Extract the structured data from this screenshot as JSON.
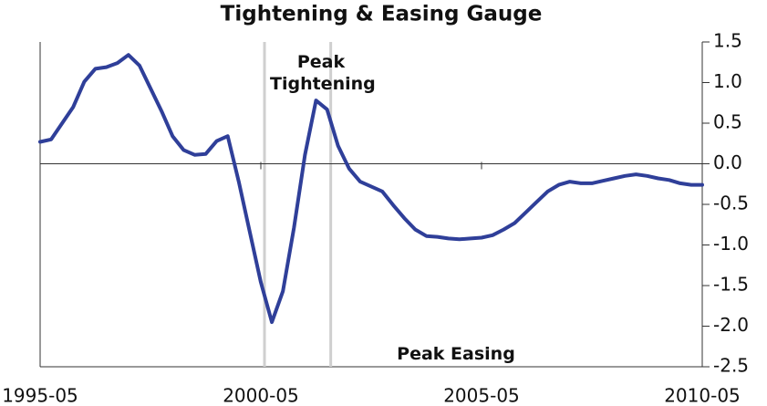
{
  "chart_data": {
    "type": "line",
    "title": "Tightening & Easing Gauge",
    "x": [
      "1995-05",
      "1995-08",
      "1995-11",
      "1996-02",
      "1996-05",
      "1996-08",
      "1996-11",
      "1997-02",
      "1997-05",
      "1997-08",
      "1997-11",
      "1998-02",
      "1998-05",
      "1998-08",
      "1998-11",
      "1999-02",
      "1999-05",
      "1999-08",
      "1999-11",
      "2000-02",
      "2000-05",
      "2000-08",
      "2000-11",
      "2001-02",
      "2001-05",
      "2001-08",
      "2001-11",
      "2002-02",
      "2002-05",
      "2002-08",
      "2002-11",
      "2003-02",
      "2003-05",
      "2003-08",
      "2003-11",
      "2004-02",
      "2004-05",
      "2004-08",
      "2004-11",
      "2005-02",
      "2005-05",
      "2005-08",
      "2005-11",
      "2006-02",
      "2006-05",
      "2006-08",
      "2006-11",
      "2007-02",
      "2007-05",
      "2007-08",
      "2007-11",
      "2008-02",
      "2008-05",
      "2008-08",
      "2008-11",
      "2009-02",
      "2009-05",
      "2009-08",
      "2009-11",
      "2010-02",
      "2010-05"
    ],
    "values": [
      0.27,
      0.3,
      0.5,
      0.7,
      1.01,
      1.17,
      1.19,
      1.24,
      1.34,
      1.21,
      0.93,
      0.65,
      0.34,
      0.17,
      0.11,
      0.12,
      0.28,
      0.34,
      -0.22,
      -0.84,
      -1.46,
      -1.95,
      -1.57,
      -0.79,
      0.11,
      0.78,
      0.67,
      0.22,
      -0.06,
      -0.22,
      -0.28,
      -0.34,
      -0.51,
      -0.67,
      -0.81,
      -0.89,
      -0.9,
      -0.92,
      -0.93,
      -0.92,
      -0.91,
      -0.88,
      -0.81,
      -0.73,
      -0.6,
      -0.47,
      -0.34,
      -0.26,
      -0.22,
      -0.24,
      -0.24,
      -0.21,
      -0.18,
      -0.15,
      -0.13,
      -0.15,
      -0.18,
      -0.2,
      -0.24,
      -0.26,
      -0.26
    ],
    "color": "#2f3f99",
    "xlim": [
      "1995-05",
      "2010-05"
    ],
    "xticks": [
      "1995-05",
      "2000-05",
      "2005-05",
      "2010-05"
    ],
    "ylim": [
      -2.5,
      1.5
    ],
    "yticks": [
      1.5,
      {
        "value": 1,
        "label": "1.0"
      },
      0.5,
      {
        "value": 0,
        "label": "0.0"
      },
      -0.5,
      {
        "value": -1,
        "label": "-1.0"
      },
      -1.5,
      {
        "value": -2,
        "label": "-2.0"
      },
      -2.5
    ],
    "vlines": [
      "2000-06",
      "2001-12"
    ],
    "annotations": [
      "Peak Tightening",
      "Peak Easing"
    ]
  }
}
